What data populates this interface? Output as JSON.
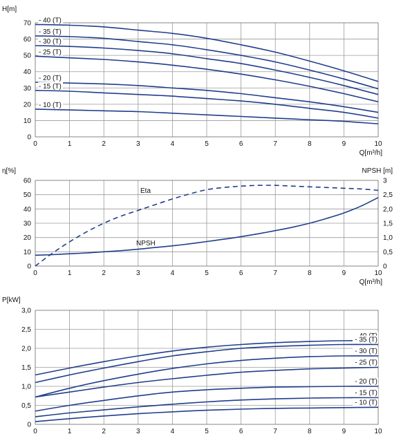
{
  "colors": {
    "curve": "#1f3d8c",
    "grid": "#9a9a9a",
    "background": "#ffffff",
    "text": "#111111"
  },
  "chart_data": [
    {
      "type": "line",
      "title": "",
      "ylabel": "H[m]",
      "xlabel": "Q[m³/h]",
      "xlim": [
        0,
        10
      ],
      "ylim": [
        0,
        70
      ],
      "x_ticks": [
        "0",
        "1",
        "2",
        "3",
        "4",
        "5",
        "6",
        "7",
        "8",
        "9",
        "10"
      ],
      "y_ticks": [
        "0",
        "10",
        "20",
        "30",
        "40",
        "50",
        "60",
        "70"
      ],
      "grid": true,
      "x": [
        0,
        1,
        2,
        3,
        4,
        5,
        6,
        7,
        8,
        9,
        10
      ],
      "series": [
        {
          "name": "- 40 (T)",
          "values": [
            69,
            68.5,
            67.5,
            65.5,
            63.5,
            60.5,
            56.5,
            52,
            46.5,
            40.5,
            34
          ]
        },
        {
          "name": "- 35 (T)",
          "values": [
            62,
            61.5,
            60.5,
            58.5,
            56.5,
            53.5,
            50,
            46,
            41,
            35.5,
            29.5
          ]
        },
        {
          "name": "- 30 (T)",
          "values": [
            56,
            55.5,
            54.5,
            53,
            51,
            48,
            45,
            41,
            36.5,
            31.5,
            26
          ]
        },
        {
          "name": "- 25 (T)",
          "values": [
            49.5,
            48.5,
            47.5,
            46,
            44,
            41.5,
            38.5,
            35,
            31,
            26.5,
            21.5
          ]
        },
        {
          "name": "- 20 (T)",
          "values": [
            33.5,
            33,
            32.5,
            31.5,
            30,
            28.5,
            26.5,
            24,
            21.5,
            18.5,
            15
          ]
        },
        {
          "name": "- 15 (T)",
          "values": [
            28.5,
            28,
            27,
            26,
            25,
            23.5,
            22,
            20,
            17.5,
            15,
            11.5
          ]
        },
        {
          "name": "- 10 (T)",
          "values": [
            17,
            16.5,
            16,
            15.5,
            14.5,
            13.5,
            12.5,
            11.5,
            10.5,
            9.5,
            8
          ]
        }
      ]
    },
    {
      "type": "line",
      "title": "",
      "ylabel": "η[%]",
      "ylabel_right": "NPSH [m]",
      "xlabel": "Q[m³/h]",
      "xlim": [
        0,
        10
      ],
      "ylim": [
        0,
        60
      ],
      "ylim_right": [
        0,
        3
      ],
      "x_ticks": [
        "0",
        "1",
        "2",
        "3",
        "4",
        "5",
        "6",
        "7",
        "8",
        "9",
        "10"
      ],
      "y_ticks": [
        "0",
        "10",
        "20",
        "30",
        "40",
        "50",
        "60"
      ],
      "y_ticks_right": [
        "0",
        "0,5",
        "1,0",
        "1,5",
        "2,0",
        "2,5",
        "3"
      ],
      "grid": true,
      "x": [
        0,
        0.5,
        1,
        1.5,
        2,
        2.5,
        3,
        3.5,
        4,
        4.5,
        5,
        5.5,
        6,
        6.5,
        7,
        7.5,
        8,
        8.5,
        9,
        9.5,
        10
      ],
      "series": [
        {
          "name": "Eta",
          "style": "dashed",
          "axis": "left",
          "values": [
            0,
            9,
            17,
            24,
            30,
            35,
            39,
            43,
            47,
            50.5,
            53.5,
            55,
            56,
            56.5,
            56.5,
            56,
            55.5,
            55,
            54.5,
            54,
            53
          ]
        },
        {
          "name": "NPSH",
          "style": "solid",
          "axis": "right",
          "values": [
            0.38,
            0.4,
            0.43,
            0.46,
            0.5,
            0.54,
            0.59,
            0.65,
            0.71,
            0.78,
            0.86,
            0.94,
            1.03,
            1.13,
            1.24,
            1.36,
            1.5,
            1.67,
            1.86,
            2.1,
            2.4
          ]
        }
      ]
    },
    {
      "type": "line",
      "title": "",
      "ylabel": "P[kW]",
      "xlabel": "",
      "xlim": [
        0,
        10
      ],
      "ylim": [
        0,
        3.0
      ],
      "x_ticks": [
        "0",
        "1",
        "2",
        "3",
        "4",
        "5",
        "6",
        "7",
        "8",
        "9",
        "10"
      ],
      "y_ticks": [
        "0",
        "0,5",
        "1,0",
        "1,5",
        "2,0",
        "2,5",
        "3,0"
      ],
      "grid": true,
      "x": [
        0,
        1,
        2,
        3,
        4,
        5,
        6,
        7,
        8,
        9,
        10
      ],
      "series": [
        {
          "name": "- 40 (T)",
          "values": [
            1.3,
            1.48,
            1.65,
            1.8,
            1.93,
            2.03,
            2.1,
            2.15,
            2.18,
            2.2,
            2.2
          ]
        },
        {
          "name": "- 35 (T)",
          "values": [
            1.1,
            1.3,
            1.48,
            1.65,
            1.8,
            1.91,
            2.0,
            2.05,
            2.08,
            2.1,
            2.1
          ]
        },
        {
          "name": "- 30 (T)",
          "values": [
            0.72,
            0.95,
            1.15,
            1.32,
            1.47,
            1.59,
            1.68,
            1.74,
            1.78,
            1.8,
            1.8
          ]
        },
        {
          "name": "- 25 (T)",
          "values": [
            0.72,
            0.85,
            0.98,
            1.1,
            1.2,
            1.29,
            1.37,
            1.42,
            1.46,
            1.48,
            1.5
          ]
        },
        {
          "name": "- 20 (T)",
          "values": [
            0.35,
            0.5,
            0.63,
            0.75,
            0.85,
            0.91,
            0.95,
            0.98,
            0.99,
            1.0,
            1.0
          ]
        },
        {
          "name": "- 15 (T)",
          "values": [
            0.2,
            0.3,
            0.38,
            0.46,
            0.53,
            0.59,
            0.64,
            0.67,
            0.69,
            0.7,
            0.7
          ]
        },
        {
          "name": "- 10 (T)",
          "values": [
            0.07,
            0.15,
            0.22,
            0.28,
            0.33,
            0.37,
            0.4,
            0.42,
            0.43,
            0.44,
            0.45
          ]
        }
      ]
    }
  ]
}
